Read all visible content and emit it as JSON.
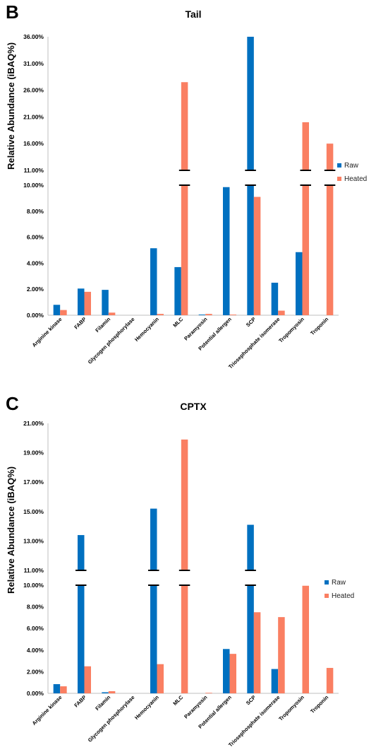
{
  "colors": {
    "raw": "#0070C0",
    "heated": "#FA7F62"
  },
  "chart_data": [
    {
      "type": "bar",
      "panel": "B",
      "title": "Tail",
      "ylabel": "Relative Abundance (iBAQ%)",
      "xlabel": "",
      "axis_break": {
        "lower": [
          0,
          10
        ],
        "upper": [
          11,
          36
        ]
      },
      "yticks": [
        "0.00%",
        "2.00%",
        "4.00%",
        "6.00%",
        "8.00%",
        "10.00%",
        "11.00%",
        "16.00%",
        "21.00%",
        "26.00%",
        "31.00%",
        "36.00%"
      ],
      "legend": "right",
      "categories": [
        "Arginine kinase",
        "FABP",
        "Filamin",
        "Glycogen phosphorylase",
        "Hemocyanin",
        "MLC",
        "Paramyosin",
        "Potential allergen",
        "SCP",
        "Triosephosphate isomerase",
        "Tropomyosin",
        "Troponin"
      ],
      "series": [
        {
          "name": "Raw",
          "values": [
            0.8,
            2.05,
            1.95,
            0,
            5.15,
            3.7,
            0.05,
            9.85,
            36.0,
            2.5,
            4.85,
            0
          ]
        },
        {
          "name": "Heated",
          "values": [
            0.4,
            1.8,
            0.2,
            0,
            0.1,
            27.5,
            0.1,
            0.05,
            9.1,
            0.35,
            20.0,
            16.0
          ]
        }
      ]
    },
    {
      "type": "bar",
      "panel": "C",
      "title": "CPTX",
      "ylabel": "Relative Abundance (iBAQ%)",
      "xlabel": "",
      "axis_break": {
        "lower": [
          0,
          10
        ],
        "upper": [
          11,
          21
        ]
      },
      "yticks": [
        "0.00%",
        "2.00%",
        "4.00%",
        "6.00%",
        "8.00%",
        "10.00%",
        "11.00%",
        "13.00%",
        "15.00%",
        "17.00%",
        "19.00%",
        "21.00%"
      ],
      "legend": "right",
      "categories": [
        "Arginine kinase",
        "FABP",
        "Filamin",
        "Glycogen phosphorylase",
        "Hemocyanin",
        "MLC",
        "Paramyosin",
        "Potential allergen",
        "SCP",
        "Triosephosphate isomerase",
        "Tropomyosin",
        "Troponin"
      ],
      "series": [
        {
          "name": "Raw",
          "values": [
            0.85,
            13.4,
            0.1,
            0,
            15.2,
            0,
            0,
            4.1,
            14.1,
            2.25,
            0,
            0
          ]
        },
        {
          "name": "Heated",
          "values": [
            0.65,
            2.5,
            0.2,
            0,
            2.7,
            19.9,
            0.05,
            3.65,
            7.5,
            7.05,
            9.95,
            2.35
          ]
        }
      ]
    }
  ]
}
